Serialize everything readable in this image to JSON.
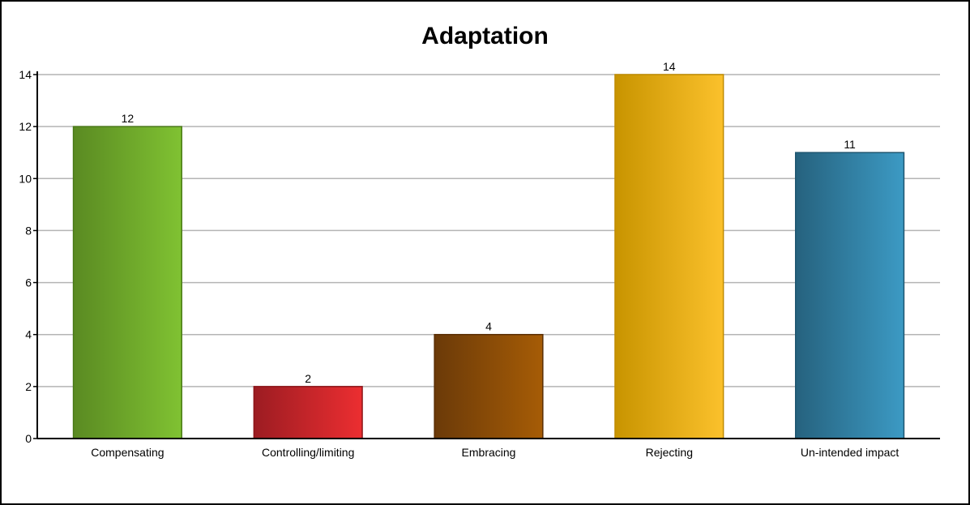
{
  "chart_data": {
    "type": "bar",
    "title": "Adaptation",
    "xlabel": "",
    "ylabel": "",
    "categories": [
      "Compensating",
      "Controlling/limiting",
      "Embracing",
      "Rejecting",
      "Un-intended impact"
    ],
    "values": [
      12,
      2,
      4,
      14,
      11
    ],
    "data_labels": [
      "12",
      "2",
      "4",
      "14",
      "11"
    ],
    "ylim": [
      0,
      14
    ],
    "yticks": [
      "0",
      "2",
      "4",
      "6",
      "8",
      "10",
      "12",
      "14"
    ],
    "grid": true,
    "legend": "none",
    "colors": [
      {
        "dark": "#5a8a22",
        "light": "#80c232",
        "stroke": "#4a7a18"
      },
      {
        "dark": "#9c1c22",
        "light": "#ec2e31",
        "stroke": "#8c1418"
      },
      {
        "dark": "#6b3a08",
        "light": "#a65c06",
        "stroke": "#5a2e04"
      },
      {
        "dark": "#c89400",
        "light": "#fbc12c",
        "stroke": "#c08c00"
      },
      {
        "dark": "#26627e",
        "light": "#3c9ac4",
        "stroke": "#1e5670"
      }
    ]
  }
}
